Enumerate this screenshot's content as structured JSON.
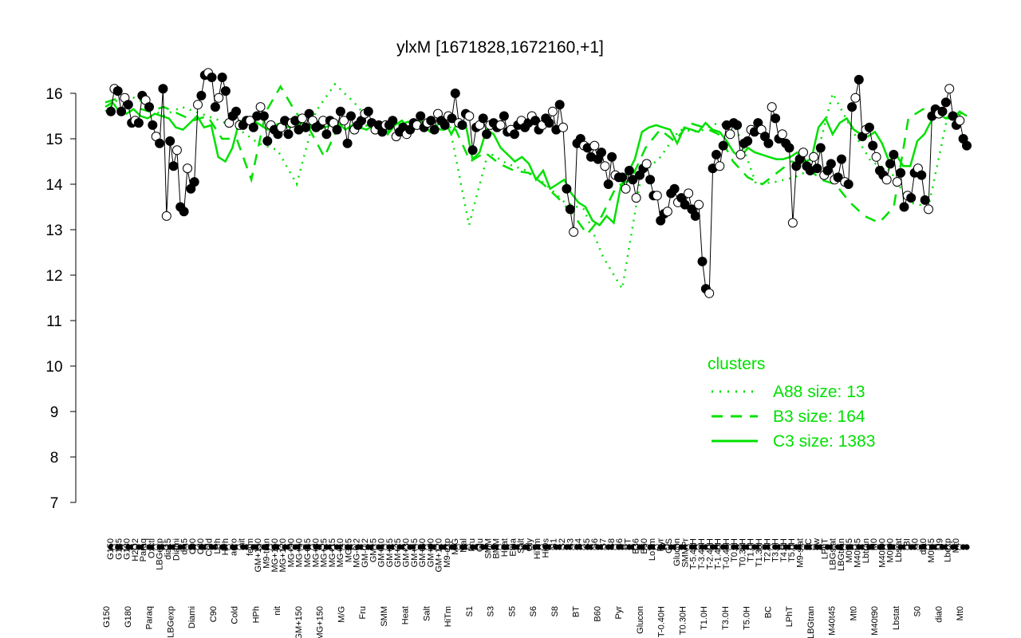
{
  "chart_data": {
    "type": "line",
    "title": "ylxM [1671828,1672160,+1]",
    "xlabel": "",
    "ylabel": "",
    "ylim": [
      7,
      16.5
    ],
    "yticks": [
      7,
      8,
      9,
      10,
      11,
      12,
      13,
      14,
      15,
      16
    ],
    "grid": false,
    "legend": {
      "title": "clusters",
      "position": "right",
      "entries": [
        "A88 size: 13",
        "B3 size: 164",
        "C3 size: 1383"
      ],
      "styles": [
        "dotted",
        "dashed",
        "solid"
      ]
    },
    "line_color": "#00e000",
    "x_labels_top": [
      "G150",
      "G135",
      "G180",
      "H2O2",
      "Paraq",
      "Oxctl",
      "LBGexp",
      "dia15",
      "Diami",
      "dia5",
      "C90",
      "C30",
      "Cold",
      "LPh",
      "HPh",
      "aero",
      "nit",
      "ferm",
      "GM+150",
      "M9-tran",
      "MG+150",
      "MG+120",
      "MG+90",
      "MG+60",
      "MG+45",
      "MG+30",
      "MG+25",
      "MG+15",
      "MG+10",
      "MG+5",
      "MG-0.2",
      "GM-0.2",
      "GM+5",
      "GM+10",
      "GM+15",
      "GM+25",
      "GM+30",
      "GM+45",
      "GM+60",
      "GM+90",
      "GM+120",
      "M9-exp",
      "M/G",
      "Mal",
      "Fru",
      "Glu",
      "SMM",
      "BMM",
      "Heat",
      "Etha",
      "Salt",
      "Gly",
      "HiTm",
      "HiOs",
      "S1",
      "S2",
      "S3",
      "S4",
      "S5",
      "S6",
      "S7",
      "S8",
      "S6",
      "BT",
      "B36",
      "B60",
      "LoTm",
      "Pyr",
      "G/S",
      "Glucon",
      "SMMPr",
      "T-5.40H",
      "T-3.40H",
      "T-2.40H",
      "T-1.40H",
      "T-0.40H",
      "T0.0H",
      "T0.30H",
      "T1.0H",
      "T1.30H",
      "T2.0H",
      "T3.0H",
      "T4.0H",
      "T5.0H",
      "M9-stat",
      "BC",
      "Sw",
      "LPhT",
      "LBGstat",
      "LBGtran",
      "M0t45",
      "M40t45",
      "Lbtran",
      "M0",
      "M40t90",
      "M0t90",
      "Lbstat",
      "BI",
      "S0",
      "dia0",
      "M0t45",
      "M9",
      "Lbexp",
      "Mt0"
    ],
    "x_labels_bottom": [
      "G150",
      "G180",
      "Paraq",
      "LBGexp",
      "Diami",
      "C90",
      "Cold",
      "HPh",
      "nit",
      "GM+150",
      "MG+150",
      "M/G",
      "Fru",
      "SMM",
      "Heat",
      "Salt",
      "HiTm",
      "S1",
      "S3",
      "S5",
      "S6",
      "S8",
      "BT",
      "B60",
      "Pyr",
      "Glucon",
      "T-0.40H",
      "T0.30H",
      "T1.0H",
      "T3.0H",
      "T5.0H",
      "BC",
      "LPhT",
      "LBGtran",
      "M40t45",
      "Mt0",
      "M40t90",
      "Lbstat",
      "S0",
      "dia0",
      "Mt0"
    ],
    "series": [
      {
        "name": "",
        "style": "points",
        "values": [
          15.6,
          16.1,
          16.05,
          15.6,
          15.9,
          15.75,
          15.35,
          15.4,
          15.35,
          15.95,
          15.85,
          15.7,
          15.3,
          15.05,
          14.9,
          16.1,
          13.3,
          14.95,
          14.4,
          14.75,
          13.5,
          13.4,
          14.35,
          13.9,
          14.05,
          15.75,
          15.95,
          16.4,
          16.45,
          16.35,
          15.7,
          15.9,
          16.35,
          16.05,
          15.35,
          15.5,
          15.6,
          15.3,
          15.3,
          15.4,
          15.4,
          15.25,
          15.5,
          15.7,
          15.5,
          14.95,
          15.3,
          15.2,
          15.1,
          15.25,
          15.4,
          15.1,
          15.35,
          15.4,
          15.2,
          15.45,
          15.25,
          15.55,
          15.4,
          15.25,
          15.3,
          15.4,
          15.1,
          15.4,
          15.35,
          15.2,
          15.6,
          15.4,
          14.9,
          15.5,
          15.2,
          15.3,
          15.4,
          15.55,
          15.6,
          15.35,
          15.2,
          15.3,
          15.15,
          15.3,
          15.3,
          15.4,
          15.05,
          15.15,
          15.25,
          15.1,
          15.2,
          15.35,
          15.3,
          15.5,
          15.25,
          15.35,
          15.4,
          15.2,
          15.55,
          15.4,
          15.3,
          15.5,
          15.45,
          16.0,
          15.35,
          15.3,
          15.55,
          15.5,
          14.75,
          15.25,
          15.3,
          15.45,
          15.1,
          15.3,
          15.35,
          15.25,
          15.3,
          15.5,
          15.15,
          15.2,
          15.1,
          15.3,
          15.4,
          15.25,
          15.35,
          15.5,
          15.4,
          15.2,
          15.3,
          15.45,
          15.35,
          15.6,
          15.2,
          15.75,
          15.25,
          13.9,
          13.45,
          12.95,
          14.9,
          15.0,
          14.85,
          14.8,
          14.6,
          14.85,
          14.55,
          14.7,
          14.4,
          14.0,
          14.6,
          14.2,
          14.15,
          14.15,
          13.9,
          14.3,
          14.1,
          13.7,
          14.2,
          14.35,
          14.45,
          14.1,
          13.75,
          13.75,
          13.2,
          13.35,
          13.4,
          13.8,
          13.9,
          13.6,
          13.7,
          13.55,
          13.8,
          13.45,
          13.3,
          13.55,
          12.3,
          11.7,
          11.6,
          14.35,
          14.65,
          14.4,
          14.85,
          15.3,
          15.1,
          15.35,
          15.3,
          14.65,
          14.9,
          14.95,
          15.2,
          15.15,
          15.35,
          15.2,
          15.05,
          14.9,
          15.7,
          15.45,
          15.0,
          15.1,
          14.9,
          14.8,
          13.15,
          14.4,
          14.55,
          14.7,
          14.4,
          14.3,
          14.6,
          14.35,
          14.8,
          14.2,
          14.3,
          14.45,
          14.1,
          14.15,
          14.55,
          14.05,
          14.0,
          15.7,
          15.9,
          16.3,
          15.05,
          15.2,
          15.25,
          14.85,
          14.6,
          14.3,
          14.2,
          14.1,
          14.45,
          14.65,
          14.05,
          14.25,
          13.5,
          13.75,
          13.7,
          14.25,
          14.35,
          14.2,
          13.65,
          13.45,
          15.5,
          15.65,
          15.55,
          15.6,
          15.8,
          16.1,
          15.5,
          15.3,
          15.4,
          15.0,
          14.85
        ]
      },
      {
        "name": "",
        "style": "solid",
        "values": [
          15.7,
          15.8,
          15.6,
          15.55,
          15.65,
          15.5,
          15.45,
          15.55,
          15.5,
          15.45,
          15.25,
          15.2,
          15.35,
          15.5,
          15.25,
          15.3,
          14.6,
          14.5,
          14.8,
          15.4,
          15.35,
          15.4,
          15.3,
          15.2,
          15.3,
          15.35,
          15.25,
          15.3,
          15.35,
          15.3,
          15.2,
          15.25,
          15.3,
          15.35,
          15.2,
          15.3,
          15.25,
          15.2,
          15.3,
          15.35,
          15.1,
          15.3,
          15.4,
          15.2,
          15.25,
          15.3,
          15.15,
          15.3,
          15.4,
          15.1,
          15.4,
          15.35,
          14.55,
          14.7,
          15.2,
          15.1,
          14.8,
          14.65,
          14.5,
          14.6,
          14.45,
          14.1,
          14.3,
          13.9,
          14.0,
          14.1,
          13.8,
          13.6,
          13.5,
          13.2,
          13.1,
          13.3,
          13.15,
          13.95,
          14.25,
          14.55,
          15.15,
          15.25,
          15.3,
          15.25,
          15.2,
          14.9,
          15.25,
          15.2,
          15.15,
          15.35,
          15.2,
          15.15,
          14.95,
          14.7,
          14.6,
          14.8,
          14.7,
          14.65,
          14.6,
          14.55,
          14.55,
          14.6,
          14.7,
          14.5,
          14.55,
          15.25,
          15.45,
          15.1,
          15.35,
          15.45,
          15.2,
          15.1,
          15.05,
          15.15,
          14.9,
          14.5,
          14.65,
          14.4,
          14.4,
          14.95,
          15.1,
          15.4,
          15.55,
          15.45,
          15.45,
          15.6,
          15.5
        ]
      },
      {
        "name": "",
        "style": "dashed",
        "values": [
          15.8,
          15.9,
          15.7,
          15.6,
          15.7,
          15.55,
          15.4,
          15.5,
          15.0,
          15.0,
          14.1,
          15.6,
          16.15,
          15.6,
          15.2,
          14.6,
          15.3,
          15.2,
          15.3,
          15.1,
          15.3,
          15.4,
          15.35,
          15.2,
          15.2,
          14.5,
          14.7,
          14.45,
          14.3,
          14.25,
          14.0,
          13.7,
          13.35,
          12.9,
          13.3,
          13.95,
          14.1,
          14.8,
          15.2,
          14.95,
          15.35,
          15.25,
          15.1,
          14.5,
          14.15,
          14.0,
          14.25,
          14.5,
          14.4,
          14.1,
          14.0,
          13.6,
          13.3,
          13.15,
          13.5,
          15.45,
          15.65,
          15.7,
          15.55,
          15.5
        ]
      },
      {
        "name": "",
        "style": "dotted",
        "values": [
          15.6,
          16.0,
          15.8,
          15.5,
          15.7,
          15.55,
          15.4,
          15.2,
          14.9,
          14.75,
          14.0,
          15.6,
          16.2,
          15.8,
          15.3,
          15.1,
          15.2,
          15.3,
          15.25,
          13.1,
          14.7,
          14.45,
          14.3,
          14.0,
          13.6,
          13.45,
          12.4,
          11.7,
          14.2,
          14.6,
          15.2,
          15.15,
          15.35,
          15.2,
          14.0,
          14.05,
          14.15,
          14.35,
          16.0,
          15.2,
          14.5,
          14.3,
          13.6,
          13.5,
          15.5,
          15.6
        ]
      }
    ]
  }
}
